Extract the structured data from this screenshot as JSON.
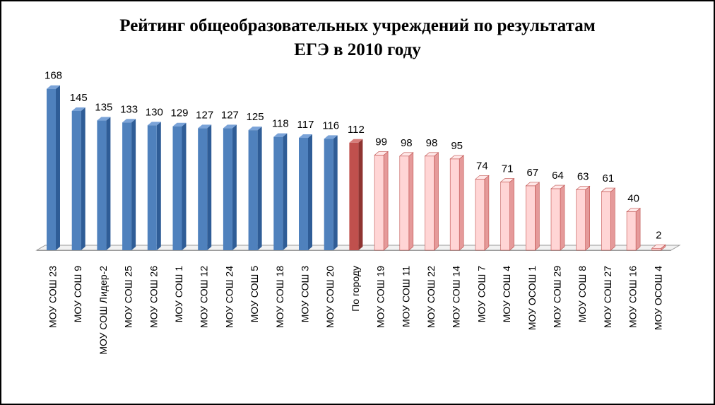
{
  "chart_data": {
    "type": "bar",
    "title_line1": "Рейтинг общеобразовательных учреждений по результатам",
    "title_line2": "ЕГЭ в 2010 году",
    "xlabel": "",
    "ylabel": "",
    "ylim": [
      0,
      170
    ],
    "grid": false,
    "legend": "none",
    "style": "3d-columns",
    "categories": [
      "МОУ СОШ 23",
      "МОУ СОШ 9",
      "МОУ СОШ Лидер-2",
      "МОУ СОШ 25",
      "МОУ СОШ 26",
      "МОУ СОШ 1",
      "МОУ СОШ 12",
      "МОУ СОШ 24",
      "МОУ СОШ 5",
      "МОУ СОШ 18",
      "МОУ СОШ 3",
      "МОУ СОШ 20",
      "По городу",
      "МОУ СОШ 19",
      "МОУ СОШ 11",
      "МОУ СОШ 22",
      "МОУ СОШ 14",
      "МОУ СОШ 7",
      "МОУ СОШ 4",
      "МОУ ОСОШ 1",
      "МОУ СОШ 29",
      "МОУ СОШ 8",
      "МОУ СОШ 27",
      "МОУ СОШ 16",
      "МОУ ОСОШ 4"
    ],
    "values": [
      168,
      145,
      135,
      133,
      130,
      129,
      127,
      127,
      125,
      118,
      117,
      116,
      112,
      99,
      98,
      98,
      95,
      74,
      71,
      67,
      64,
      63,
      61,
      40,
      2
    ],
    "groups": [
      "above",
      "above",
      "above",
      "above",
      "above",
      "above",
      "above",
      "above",
      "above",
      "above",
      "above",
      "above",
      "average",
      "below",
      "below",
      "below",
      "below",
      "below",
      "below",
      "below",
      "below",
      "below",
      "below",
      "below",
      "below"
    ],
    "colors": {
      "above": {
        "front": "#4f81bd",
        "side": "#2f5d97",
        "top": "#7aa3d8"
      },
      "average": {
        "front": "#c0504d",
        "side": "#8f3431",
        "top": "#d77c79"
      },
      "below": {
        "front": "#ffd5d5",
        "side": "#e59a9a",
        "top": "#ffe8e8",
        "stroke": "#c0504d"
      }
    }
  }
}
